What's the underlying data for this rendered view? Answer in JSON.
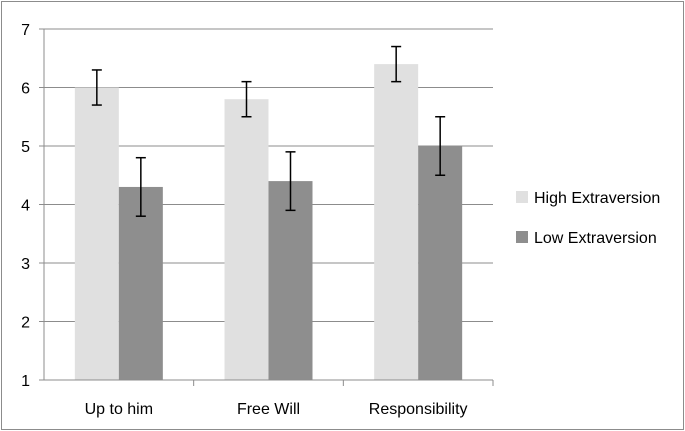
{
  "chart_data": {
    "type": "bar",
    "categories": [
      "Up to him",
      "Free Will",
      "Responsibility"
    ],
    "series": [
      {
        "name": "High Extraversion",
        "color": "#e0e0e0",
        "values": [
          6.0,
          5.8,
          6.4
        ],
        "error": [
          0.3,
          0.3,
          0.3
        ]
      },
      {
        "name": "Low Extraversion",
        "color": "#8e8e8e",
        "values": [
          4.3,
          4.4,
          5.0
        ],
        "error": [
          0.5,
          0.5,
          0.5
        ]
      }
    ],
    "ylim": [
      1,
      7
    ],
    "yticks": [
      1,
      2,
      3,
      4,
      5,
      6,
      7
    ],
    "grid": true,
    "legend_position": "right",
    "title": "",
    "xlabel": "",
    "ylabel": ""
  }
}
